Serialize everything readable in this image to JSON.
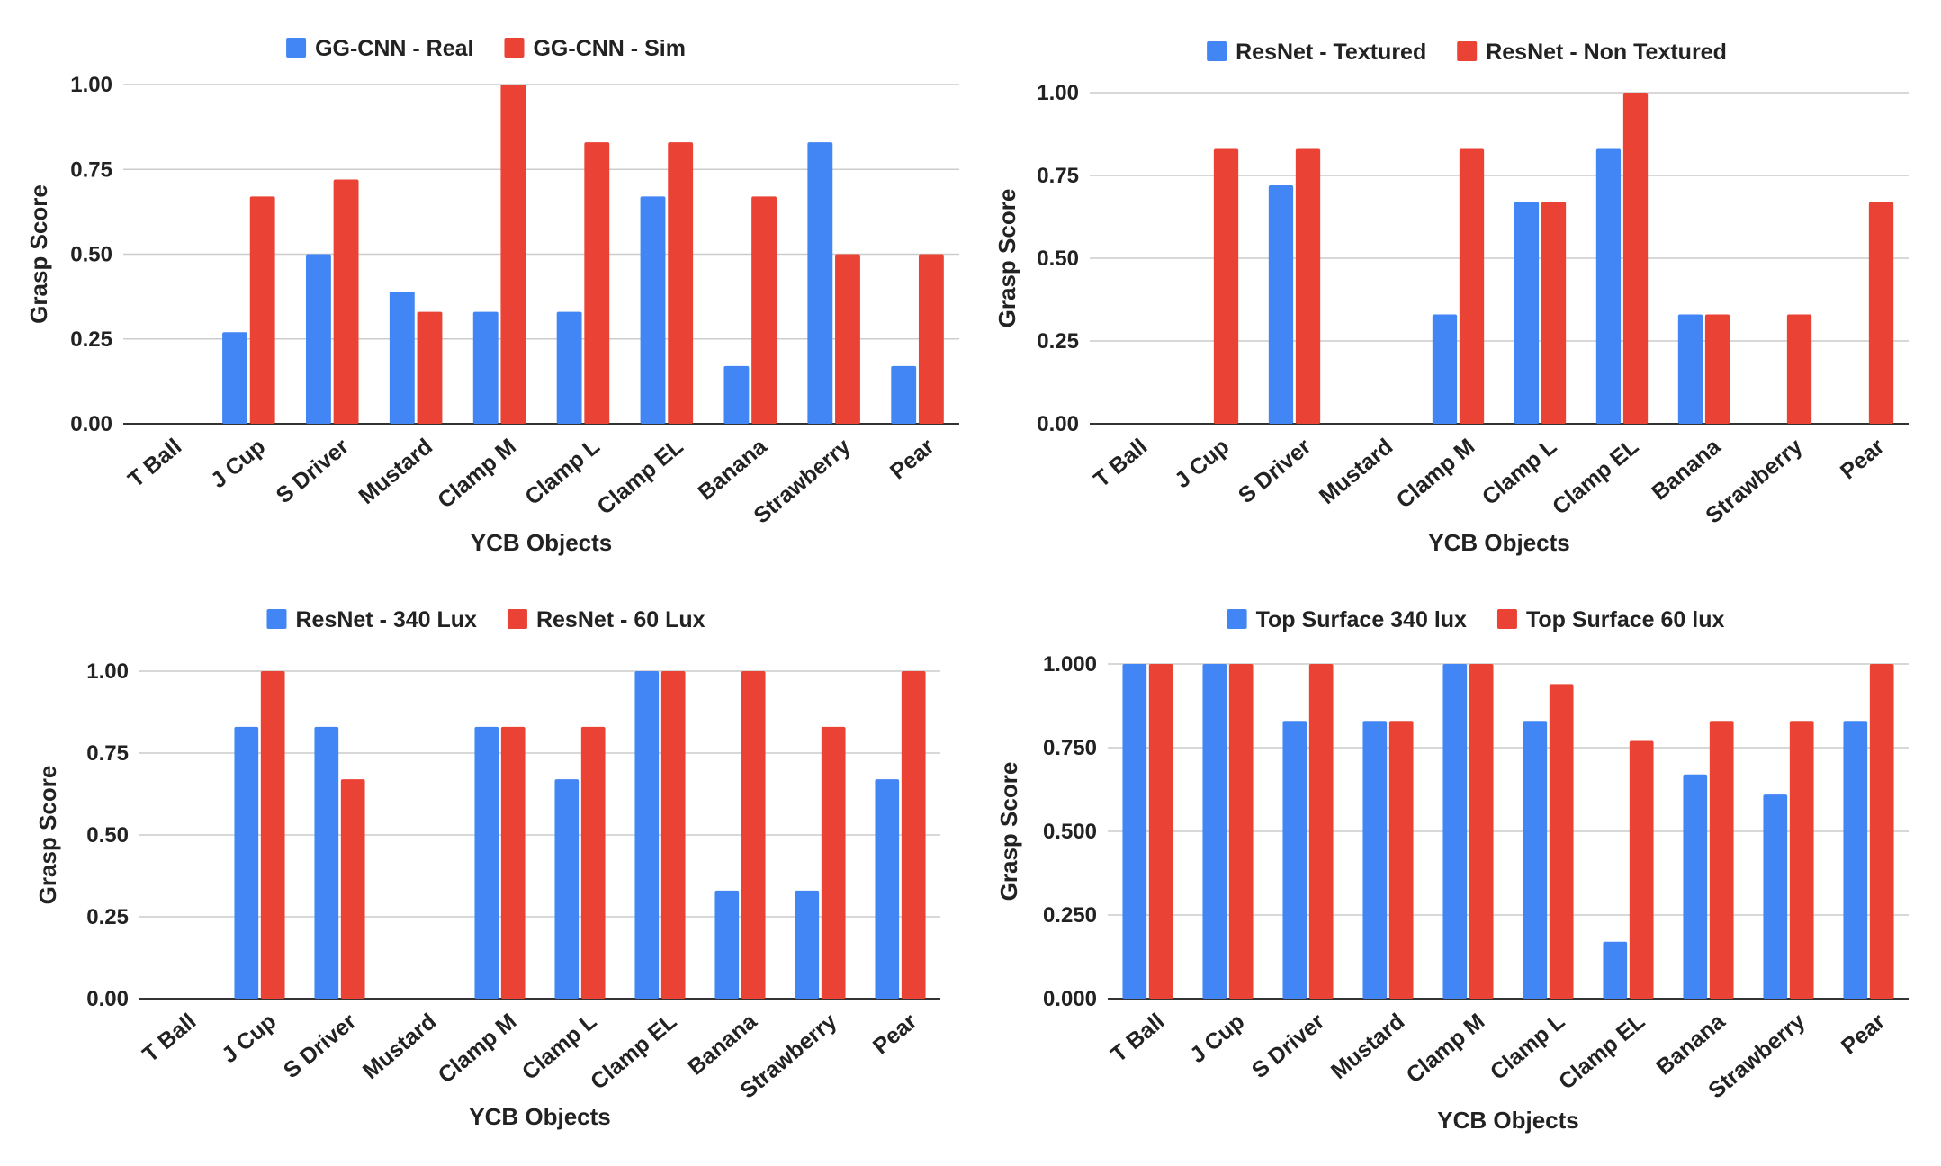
{
  "colors": {
    "series_a": "#4285F4",
    "series_b": "#EA4335",
    "grid": "#cccccc",
    "axis": "#333333"
  },
  "chart_data": [
    {
      "type": "bar",
      "title": "",
      "xlabel": "YCB Objects",
      "ylabel": "Grasp Score",
      "ylim": [
        0,
        1
      ],
      "yticks": [
        "0.00",
        "0.25",
        "0.50",
        "0.75",
        "1.00"
      ],
      "grid": true,
      "legend_position": "top-center",
      "categories": [
        "T Ball",
        "J Cup",
        "S Driver",
        "Mustard",
        "Clamp M",
        "Clamp L",
        "Clamp EL",
        "Banana",
        "Strawberry",
        "Pear"
      ],
      "series": [
        {
          "name": "GG-CNN - Real",
          "values": [
            0,
            0.27,
            0.5,
            0.39,
            0.33,
            0.33,
            0.67,
            0.17,
            0.83,
            0.17
          ]
        },
        {
          "name": "GG-CNN - Sim",
          "values": [
            0,
            0.67,
            0.72,
            0.33,
            1.0,
            0.83,
            0.83,
            0.67,
            0.5,
            0.5
          ]
        }
      ]
    },
    {
      "type": "bar",
      "title": "",
      "xlabel": "YCB Objects",
      "ylabel": "Grasp Score",
      "ylim": [
        0,
        1
      ],
      "yticks": [
        "0.00",
        "0.25",
        "0.50",
        "0.75",
        "1.00"
      ],
      "grid": true,
      "legend_position": "top-center",
      "categories": [
        "T Ball",
        "J Cup",
        "S Driver",
        "Mustard",
        "Clamp M",
        "Clamp L",
        "Clamp EL",
        "Banana",
        "Strawberry",
        "Pear"
      ],
      "series": [
        {
          "name": "ResNet - Textured",
          "values": [
            0,
            0,
            0.72,
            0,
            0.33,
            0.67,
            0.83,
            0.33,
            0,
            0
          ]
        },
        {
          "name": "ResNet - Non Textured",
          "values": [
            0,
            0.83,
            0.83,
            0,
            0.83,
            0.67,
            1.0,
            0.33,
            0.33,
            0.67
          ]
        }
      ]
    },
    {
      "type": "bar",
      "title": "",
      "xlabel": "YCB Objects",
      "ylabel": "Grasp Score",
      "ylim": [
        0,
        1
      ],
      "yticks": [
        "0.00",
        "0.25",
        "0.50",
        "0.75",
        "1.00"
      ],
      "grid": true,
      "legend_position": "top-center",
      "categories": [
        "T Ball",
        "J Cup",
        "S Driver",
        "Mustard",
        "Clamp M",
        "Clamp L",
        "Clamp EL",
        "Banana",
        "Strawberry",
        "Pear"
      ],
      "series": [
        {
          "name": "ResNet - 340 Lux",
          "values": [
            0,
            0.83,
            0.83,
            0,
            0.83,
            0.67,
            1.0,
            0.33,
            0.33,
            0.67
          ]
        },
        {
          "name": "ResNet - 60 Lux",
          "values": [
            0,
            1.0,
            0.67,
            0,
            0.83,
            0.83,
            1.0,
            1.0,
            0.83,
            1.0
          ]
        }
      ]
    },
    {
      "type": "bar",
      "title": "",
      "xlabel": "YCB Objects",
      "ylabel": "Grasp Score",
      "ylim": [
        0,
        1
      ],
      "yticks": [
        "0.000",
        "0.250",
        "0.500",
        "0.750",
        "1.000"
      ],
      "grid": true,
      "legend_position": "top-center",
      "categories": [
        "T Ball",
        "J Cup",
        "S Driver",
        "Mustard",
        "Clamp M",
        "Clamp L",
        "Clamp EL",
        "Banana",
        "Strawberry",
        "Pear"
      ],
      "series": [
        {
          "name": "Top Surface 340 lux",
          "values": [
            1.0,
            1.0,
            0.83,
            0.83,
            1.0,
            0.83,
            0.17,
            0.67,
            0.61,
            0.83
          ]
        },
        {
          "name": "Top Surface 60 lux",
          "values": [
            1.0,
            1.0,
            1.0,
            0.83,
            1.0,
            0.94,
            0.77,
            0.83,
            0.83,
            1.0
          ]
        }
      ]
    }
  ]
}
